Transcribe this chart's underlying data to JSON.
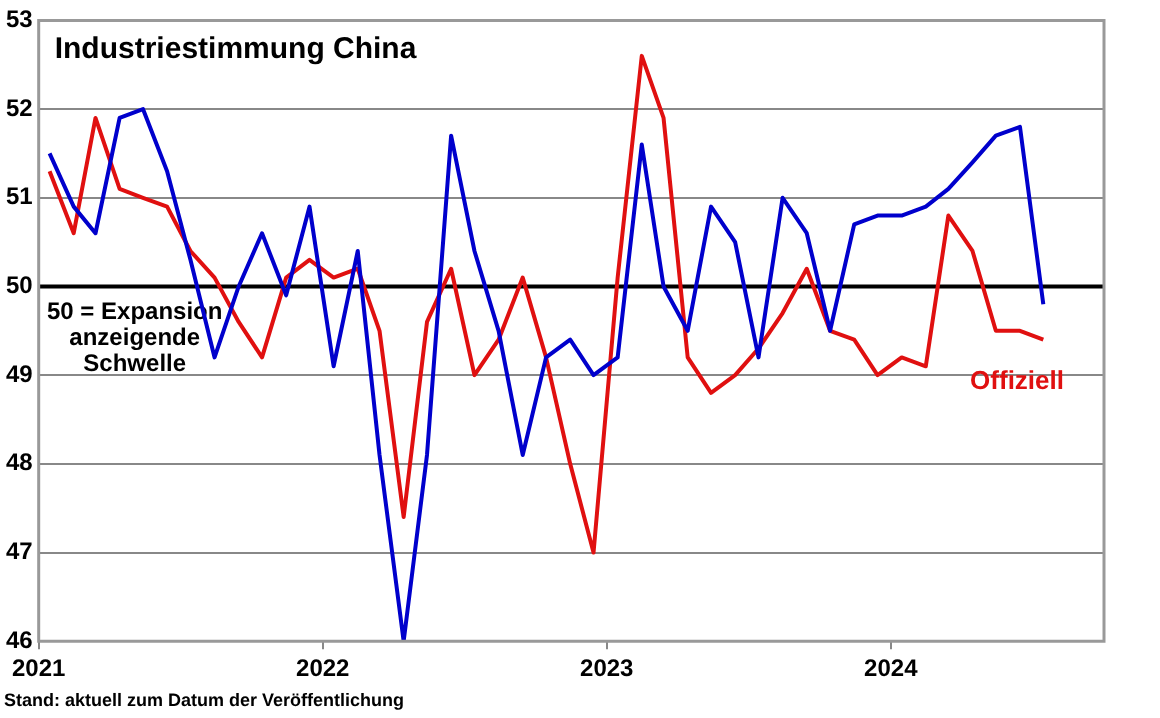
{
  "chart_data": {
    "type": "line",
    "title": "Industriestimmung China",
    "x": [
      "2021-01-15",
      "2021-02-15",
      "2021-03-15",
      "2021-04-15",
      "2021-05-15",
      "2021-06-15",
      "2021-07-15",
      "2021-08-15",
      "2021-09-15",
      "2021-10-15",
      "2021-11-15",
      "2021-12-15",
      "2022-01-15",
      "2022-02-15",
      "2022-03-15",
      "2022-04-15",
      "2022-05-15",
      "2022-06-15",
      "2022-07-15",
      "2022-08-15",
      "2022-09-15",
      "2022-10-15",
      "2022-11-15",
      "2022-12-15",
      "2023-01-15",
      "2023-02-15",
      "2023-03-15",
      "2023-04-15",
      "2023-05-15",
      "2023-06-15",
      "2023-07-15",
      "2023-08-15",
      "2023-09-15",
      "2023-10-15",
      "2023-11-15",
      "2023-12-15",
      "2024-01-15",
      "2024-02-15",
      "2024-03-15",
      "2024-04-15",
      "2024-05-15",
      "2024-06-15",
      "2024-07-15"
    ],
    "series": [
      {
        "color": "#0000cc",
        "values": [
          51.5,
          50.9,
          50.6,
          51.9,
          52.0,
          51.3,
          50.3,
          49.2,
          50.0,
          50.6,
          49.9,
          50.9,
          49.1,
          50.4,
          48.1,
          46.0,
          48.1,
          51.7,
          50.4,
          49.5,
          48.1,
          49.2,
          49.4,
          49.0,
          49.2,
          51.6,
          50.0,
          49.5,
          50.9,
          50.5,
          49.2,
          51.0,
          50.6,
          49.5,
          50.7,
          50.8,
          50.8,
          50.9,
          51.1,
          51.4,
          51.7,
          51.8,
          49.8
        ]
      },
      {
        "name": "Offiziell",
        "color": "#e01010",
        "values": [
          51.3,
          50.6,
          51.9,
          51.1,
          51.0,
          50.9,
          50.4,
          50.1,
          49.6,
          49.2,
          50.1,
          50.3,
          50.1,
          50.2,
          49.5,
          47.4,
          49.6,
          50.2,
          49.0,
          49.4,
          50.1,
          49.2,
          48.0,
          47.0,
          50.1,
          52.6,
          51.9,
          49.2,
          48.8,
          49.0,
          49.3,
          49.7,
          50.2,
          49.5,
          49.4,
          49.0,
          49.2,
          49.1,
          50.8,
          50.4,
          49.5,
          49.5,
          49.4
        ]
      }
    ],
    "xlim": [
      "2021-01",
      "2024-10"
    ],
    "xticks": [
      {
        "value": "2021",
        "label": "2021"
      },
      {
        "value": "2022",
        "label": "2022"
      },
      {
        "value": "2023",
        "label": "2023"
      },
      {
        "value": "2024",
        "label": "2024"
      }
    ],
    "ylim": [
      46,
      53
    ],
    "yticks": [
      46,
      47,
      48,
      49,
      50,
      51,
      52,
      53
    ],
    "grid": "y",
    "legend": "bottom right",
    "marker": "none",
    "line_style": "solid",
    "ref_lines": [
      {
        "axis": "y",
        "value": 50,
        "label": "50 = Expansion anzeigende Schwelle",
        "color": "#000000"
      }
    ],
    "annotations": [
      "Stand: aktuell zum Datum der Veröffentlichung"
    ]
  }
}
